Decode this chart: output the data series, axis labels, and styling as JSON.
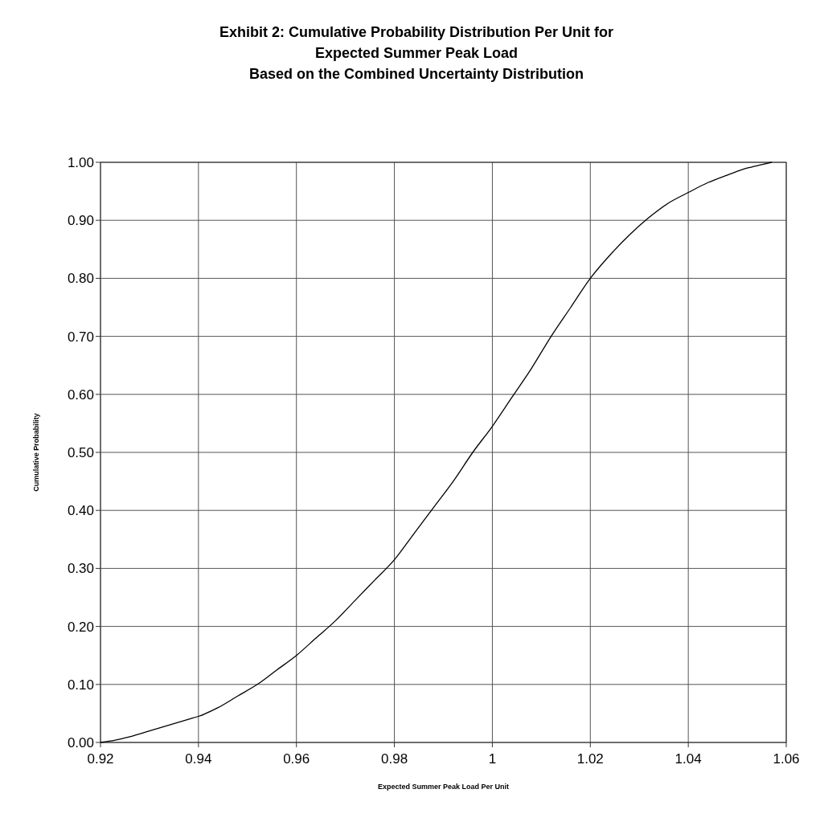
{
  "chart_data": {
    "type": "line",
    "title": "Exhibit 2: Cumulative Probability Distribution Per Unit for Expected Summer Peak Load",
    "subtitle": "Based on the Combined Uncertainty Distribution",
    "xlabel": "Expected Summer Peak Load Per Unit",
    "ylabel": "Cumulative Probability",
    "series": [
      {
        "color": "#000000",
        "x": [
          0.92,
          0.923,
          0.926,
          0.93,
          0.934,
          0.938,
          0.94,
          0.944,
          0.948,
          0.952,
          0.956,
          0.96,
          0.964,
          0.968,
          0.972,
          0.976,
          0.98,
          0.984,
          0.988,
          0.992,
          0.996,
          1.0,
          1.004,
          1.008,
          1.012,
          1.016,
          1.02,
          1.024,
          1.028,
          1.032,
          1.036,
          1.04,
          1.044,
          1.048,
          1.052,
          1.055,
          1.057
        ],
        "values": [
          0.0,
          0.004,
          0.01,
          0.02,
          0.03,
          0.04,
          0.045,
          0.06,
          0.08,
          0.1,
          0.125,
          0.15,
          0.18,
          0.21,
          0.245,
          0.28,
          0.315,
          0.36,
          0.405,
          0.45,
          0.5,
          0.545,
          0.595,
          0.645,
          0.7,
          0.75,
          0.8,
          0.84,
          0.875,
          0.905,
          0.93,
          0.948,
          0.965,
          0.978,
          0.99,
          0.996,
          1.0
        ]
      }
    ],
    "xlim": [
      0.92,
      1.06
    ],
    "xticks": [
      0.92,
      0.94,
      0.96,
      0.98,
      1,
      1.02,
      1.04,
      1.06
    ],
    "ylim": [
      0,
      1
    ],
    "yticks": [
      {
        "value": 0,
        "label": "0.00"
      },
      {
        "value": 0.1,
        "label": "0.10"
      },
      {
        "value": 0.2,
        "label": "0.20"
      },
      {
        "value": 0.3,
        "label": "0.30"
      },
      {
        "value": 0.4,
        "label": "0.40"
      },
      {
        "value": 0.5,
        "label": "0.50"
      },
      {
        "value": 0.6,
        "label": "0.60"
      },
      {
        "value": 0.7,
        "label": "0.70"
      },
      {
        "value": 0.8,
        "label": "0.80"
      },
      {
        "value": 0.9,
        "label": "0.90"
      },
      {
        "value": 1,
        "label": "1.00"
      }
    ],
    "grid": true,
    "marker": "none",
    "line_style": "solid"
  }
}
